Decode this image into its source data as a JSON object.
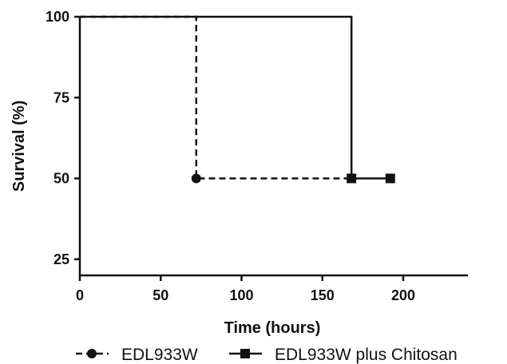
{
  "chart_data": {
    "type": "line",
    "subtype": "kaplan-meier step",
    "xlabel": "Time (hours)",
    "ylabel": "Survival (%)",
    "xlim": [
      0,
      240
    ],
    "ylim": [
      20,
      100
    ],
    "xticks": [
      0,
      50,
      100,
      150,
      200
    ],
    "yticks": [
      25,
      50,
      75,
      100
    ],
    "grid": false,
    "legend": "bottom",
    "series": [
      {
        "name": "EDL933W",
        "style": "dashed",
        "marker": "circle",
        "color": "#111111",
        "steps": [
          [
            0,
            100
          ],
          [
            72,
            100
          ],
          [
            72,
            50
          ],
          [
            168,
            50
          ]
        ],
        "markers": [
          [
            72,
            50
          ]
        ]
      },
      {
        "name": "EDL933W plus Chitosan",
        "style": "solid",
        "marker": "square",
        "color": "#111111",
        "steps": [
          [
            0,
            100
          ],
          [
            168,
            100
          ],
          [
            168,
            50
          ],
          [
            192,
            50
          ]
        ],
        "markers": [
          [
            168,
            50
          ],
          [
            192,
            50
          ]
        ]
      }
    ]
  }
}
